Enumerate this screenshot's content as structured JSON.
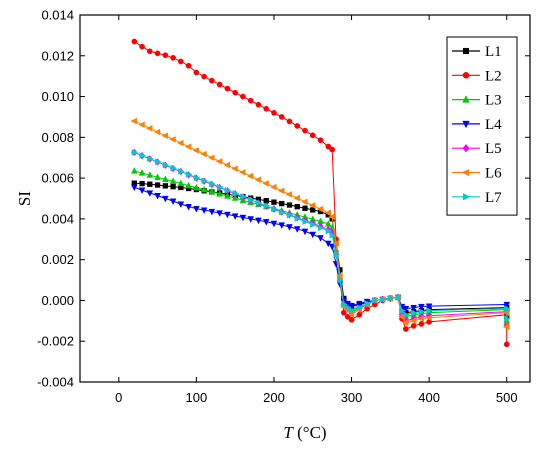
{
  "chart_data": {
    "type": "line",
    "xlabel_italic": "T",
    "xlabel_unit": " (°C)",
    "ylabel": "SI",
    "xlim": [
      -50,
      530
    ],
    "ylim": [
      -0.004,
      0.014
    ],
    "xticks": [
      0,
      100,
      200,
      300,
      400,
      500
    ],
    "yticks": [
      -0.004,
      -0.002,
      0.0,
      0.002,
      0.004,
      0.006,
      0.008,
      0.01,
      0.012,
      0.014
    ],
    "ytick_labels": [
      "-0.004",
      "-0.002",
      "0.000",
      "0.002",
      "0.004",
      "0.006",
      "0.008",
      "0.010",
      "0.012",
      "0.014"
    ],
    "grid": false,
    "legend_position": "top-right",
    "series": [
      {
        "name": "L1",
        "color": "#000000",
        "marker": "square",
        "x": [
          20,
          30,
          40,
          50,
          60,
          70,
          80,
          90,
          100,
          110,
          120,
          130,
          140,
          150,
          160,
          170,
          180,
          190,
          200,
          210,
          220,
          230,
          240,
          250,
          260,
          270,
          275,
          280,
          285,
          290,
          295,
          300,
          310,
          320,
          330,
          340,
          350,
          360,
          365,
          370,
          380,
          390,
          400,
          500,
          500
        ],
        "y": [
          0.00575,
          0.00573,
          0.0057,
          0.00566,
          0.00562,
          0.00558,
          0.00554,
          0.00549,
          0.00544,
          0.00538,
          0.00532,
          0.00527,
          0.00521,
          0.00515,
          0.00509,
          0.00502,
          0.00496,
          0.00489,
          0.00482,
          0.00475,
          0.00468,
          0.0046,
          0.00452,
          0.00444,
          0.00436,
          0.0042,
          0.004,
          0.0028,
          0.0015,
          0.0001,
          -0.0002,
          -0.0003,
          -0.0002,
          -0.0001,
          0.0,
          5e-05,
          0.0001,
          0.00015,
          -0.0005,
          -0.0006,
          -0.00055,
          -0.0005,
          -0.00045,
          -0.00035,
          -0.0008
        ]
      },
      {
        "name": "L2",
        "color": "#ff0000",
        "marker": "circle",
        "x": [
          20,
          30,
          40,
          50,
          60,
          70,
          80,
          90,
          100,
          110,
          120,
          130,
          140,
          150,
          160,
          170,
          180,
          190,
          200,
          210,
          220,
          230,
          240,
          250,
          260,
          270,
          275,
          280,
          285,
          290,
          295,
          300,
          310,
          320,
          330,
          340,
          350,
          360,
          365,
          370,
          380,
          390,
          400,
          500,
          500
        ],
        "y": [
          0.0127,
          0.01245,
          0.01222,
          0.01212,
          0.01203,
          0.0119,
          0.01172,
          0.01151,
          0.01118,
          0.01098,
          0.01078,
          0.01059,
          0.01039,
          0.01019,
          0.01,
          0.0098,
          0.0096,
          0.0094,
          0.0092,
          0.009,
          0.00878,
          0.00856,
          0.00833,
          0.0081,
          0.00786,
          0.00755,
          0.0074,
          0.003,
          0.001,
          -0.0006,
          -0.0008,
          -0.00095,
          -0.0007,
          -0.0004,
          -0.0002,
          0.0,
          0.0001,
          0.00015,
          -0.0009,
          -0.0014,
          -0.00125,
          -0.00115,
          -0.00105,
          -0.0007,
          -0.00215
        ]
      },
      {
        "name": "L3",
        "color": "#00cc00",
        "marker": "triangle-up",
        "x": [
          20,
          30,
          40,
          50,
          60,
          70,
          80,
          90,
          100,
          110,
          120,
          130,
          140,
          150,
          160,
          170,
          180,
          190,
          200,
          210,
          220,
          230,
          240,
          250,
          260,
          270,
          275,
          280,
          285,
          290,
          295,
          300,
          310,
          320,
          330,
          340,
          350,
          360,
          365,
          370,
          380,
          390,
          400,
          500,
          500
        ],
        "y": [
          0.00635,
          0.00625,
          0.00615,
          0.00604,
          0.00594,
          0.00584,
          0.00574,
          0.00563,
          0.00553,
          0.00543,
          0.00533,
          0.00522,
          0.00512,
          0.00502,
          0.00491,
          0.00481,
          0.00471,
          0.0046,
          0.0045,
          0.0044,
          0.00429,
          0.00419,
          0.00409,
          0.00398,
          0.00388,
          0.00375,
          0.00355,
          0.0025,
          0.0012,
          -0.0001,
          -0.0003,
          -0.00045,
          -0.0003,
          -0.00015,
          0.0,
          5e-05,
          0.0001,
          0.00015,
          -0.0006,
          -0.0008,
          -0.0007,
          -0.00065,
          -0.0006,
          -0.00045,
          -0.001
        ]
      },
      {
        "name": "L4",
        "color": "#0000ff",
        "marker": "triangle-down",
        "x": [
          20,
          30,
          40,
          50,
          60,
          70,
          80,
          90,
          100,
          110,
          120,
          130,
          140,
          150,
          160,
          170,
          180,
          190,
          200,
          210,
          220,
          230,
          240,
          250,
          260,
          270,
          275,
          280,
          285,
          290,
          295,
          300,
          310,
          320,
          330,
          340,
          350,
          360,
          365,
          370,
          380,
          390,
          400,
          500,
          500
        ],
        "y": [
          0.00555,
          0.00541,
          0.00527,
          0.00514,
          0.005,
          0.00487,
          0.00473,
          0.0046,
          0.0045,
          0.00443,
          0.00436,
          0.00429,
          0.00422,
          0.00414,
          0.00407,
          0.004,
          0.00393,
          0.00386,
          0.00378,
          0.0037,
          0.00361,
          0.00351,
          0.00339,
          0.00324,
          0.00307,
          0.0028,
          0.00265,
          0.0018,
          0.0008,
          0.0,
          -0.00015,
          -0.00025,
          -0.00015,
          -5e-05,
          0.0,
          5e-05,
          0.0001,
          0.00015,
          -0.0003,
          -0.0004,
          -0.00035,
          -0.0003,
          -0.00028,
          -0.0002,
          -0.0006
        ]
      },
      {
        "name": "L5",
        "color": "#ff00ff",
        "marker": "diamond",
        "x": [
          20,
          30,
          40,
          50,
          60,
          70,
          80,
          90,
          100,
          110,
          120,
          130,
          140,
          150,
          160,
          170,
          180,
          190,
          200,
          210,
          220,
          230,
          240,
          250,
          260,
          270,
          275,
          280,
          285,
          290,
          295,
          300,
          310,
          320,
          330,
          340,
          350,
          360,
          365,
          370,
          380,
          390,
          400,
          500,
          500
        ],
        "y": [
          0.00726,
          0.0071,
          0.00694,
          0.00679,
          0.00663,
          0.00647,
          0.00632,
          0.00616,
          0.006,
          0.00585,
          0.00569,
          0.00554,
          0.00538,
          0.00523,
          0.00508,
          0.00493,
          0.00478,
          0.00463,
          0.00448,
          0.00434,
          0.0042,
          0.00406,
          0.00392,
          0.00378,
          0.00364,
          0.00348,
          0.0033,
          0.0023,
          0.001,
          -0.0002,
          -0.0004,
          -0.0006,
          -0.0004,
          -0.0002,
          0.0,
          5e-05,
          0.0001,
          0.00015,
          -0.0007,
          -0.001,
          -0.0009,
          -0.0008,
          -0.00075,
          -0.00055,
          -0.0012
        ]
      },
      {
        "name": "L6",
        "color": "#ff8000",
        "marker": "triangle-left",
        "x": [
          20,
          30,
          40,
          50,
          60,
          70,
          80,
          90,
          100,
          110,
          120,
          130,
          140,
          150,
          160,
          170,
          180,
          190,
          200,
          210,
          220,
          230,
          240,
          250,
          260,
          270,
          275,
          280,
          285,
          290,
          295,
          300,
          310,
          320,
          330,
          340,
          350,
          360,
          365,
          370,
          380,
          390,
          400,
          500,
          500
        ],
        "y": [
          0.0088,
          0.00862,
          0.00844,
          0.00826,
          0.00808,
          0.0079,
          0.00772,
          0.00754,
          0.00736,
          0.00718,
          0.007,
          0.00682,
          0.00664,
          0.00646,
          0.00628,
          0.0061,
          0.00592,
          0.00574,
          0.00556,
          0.00538,
          0.0052,
          0.00502,
          0.00484,
          0.00466,
          0.00448,
          0.0043,
          0.0041,
          0.0028,
          0.0012,
          -0.0003,
          -0.00045,
          -0.0007,
          -0.00045,
          -0.0002,
          0.0,
          5e-05,
          0.0001,
          0.00015,
          -0.0008,
          -0.0011,
          -0.001,
          -0.0009,
          -0.00085,
          -0.0006,
          -0.0013
        ]
      },
      {
        "name": "L7",
        "color": "#00cccc",
        "marker": "triangle-right",
        "x": [
          20,
          30,
          40,
          50,
          60,
          70,
          80,
          90,
          100,
          110,
          120,
          130,
          140,
          150,
          160,
          170,
          180,
          190,
          200,
          210,
          220,
          230,
          240,
          250,
          260,
          270,
          275,
          280,
          285,
          290,
          295,
          300,
          310,
          320,
          330,
          340,
          350,
          360,
          365,
          370,
          380,
          390,
          400,
          500,
          500
        ],
        "y": [
          0.00726,
          0.00711,
          0.00695,
          0.0068,
          0.00664,
          0.00649,
          0.00633,
          0.00618,
          0.00602,
          0.00587,
          0.00571,
          0.00556,
          0.0054,
          0.00525,
          0.0051,
          0.00494,
          0.00479,
          0.00464,
          0.00448,
          0.00433,
          0.00418,
          0.00402,
          0.00387,
          0.00372,
          0.00356,
          0.0034,
          0.0032,
          0.00225,
          0.001,
          -0.0002,
          -0.00035,
          -0.0005,
          -0.00035,
          -0.00015,
          0.0,
          5e-05,
          0.0001,
          0.00015,
          -0.0005,
          -0.0007,
          -0.0006,
          -0.00055,
          -0.0005,
          -0.0004,
          -0.0009
        ]
      }
    ]
  }
}
